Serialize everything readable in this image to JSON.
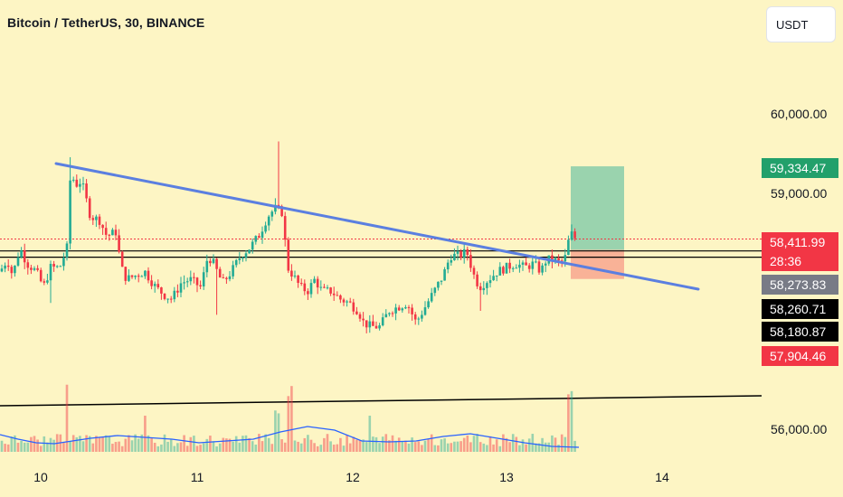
{
  "header": {
    "title": "Bitcoin / TetherUS, 30, BINANCE",
    "currency_button": "USDT"
  },
  "chart_data": {
    "type": "candlestick",
    "ylim": [
      55600,
      61400
    ],
    "grid": false,
    "y_ticks": [
      "60,000.00",
      "59,000.00",
      "56,000.00"
    ],
    "x_ticks": [
      "10",
      "11",
      "12",
      "13",
      "14"
    ],
    "price_tags": [
      {
        "label": "59,334.47",
        "color": "#22a06b",
        "text_color": "#ffffff"
      },
      {
        "label": "58,411.99",
        "color": "#f23645",
        "text_color": "#ffffff"
      },
      {
        "label": "28:36",
        "color": "#f23645",
        "text_color": "#ffffff"
      },
      {
        "label": "58,273.83",
        "color": "#787b86",
        "text_color": "#ffffff"
      },
      {
        "label": "58,260.71",
        "color": "#000000",
        "text_color": "#ffffff"
      },
      {
        "label": "58,180.87",
        "color": "#000000",
        "text_color": "#ffffff"
      },
      {
        "label": "57,904.46",
        "color": "#f23645",
        "text_color": "#ffffff"
      }
    ],
    "colors": {
      "up": "#22ab94",
      "down": "#f23645",
      "trendline": "#5b7fe0",
      "volume_ma": "#2962ff",
      "background": "#fdf5c4"
    }
  }
}
